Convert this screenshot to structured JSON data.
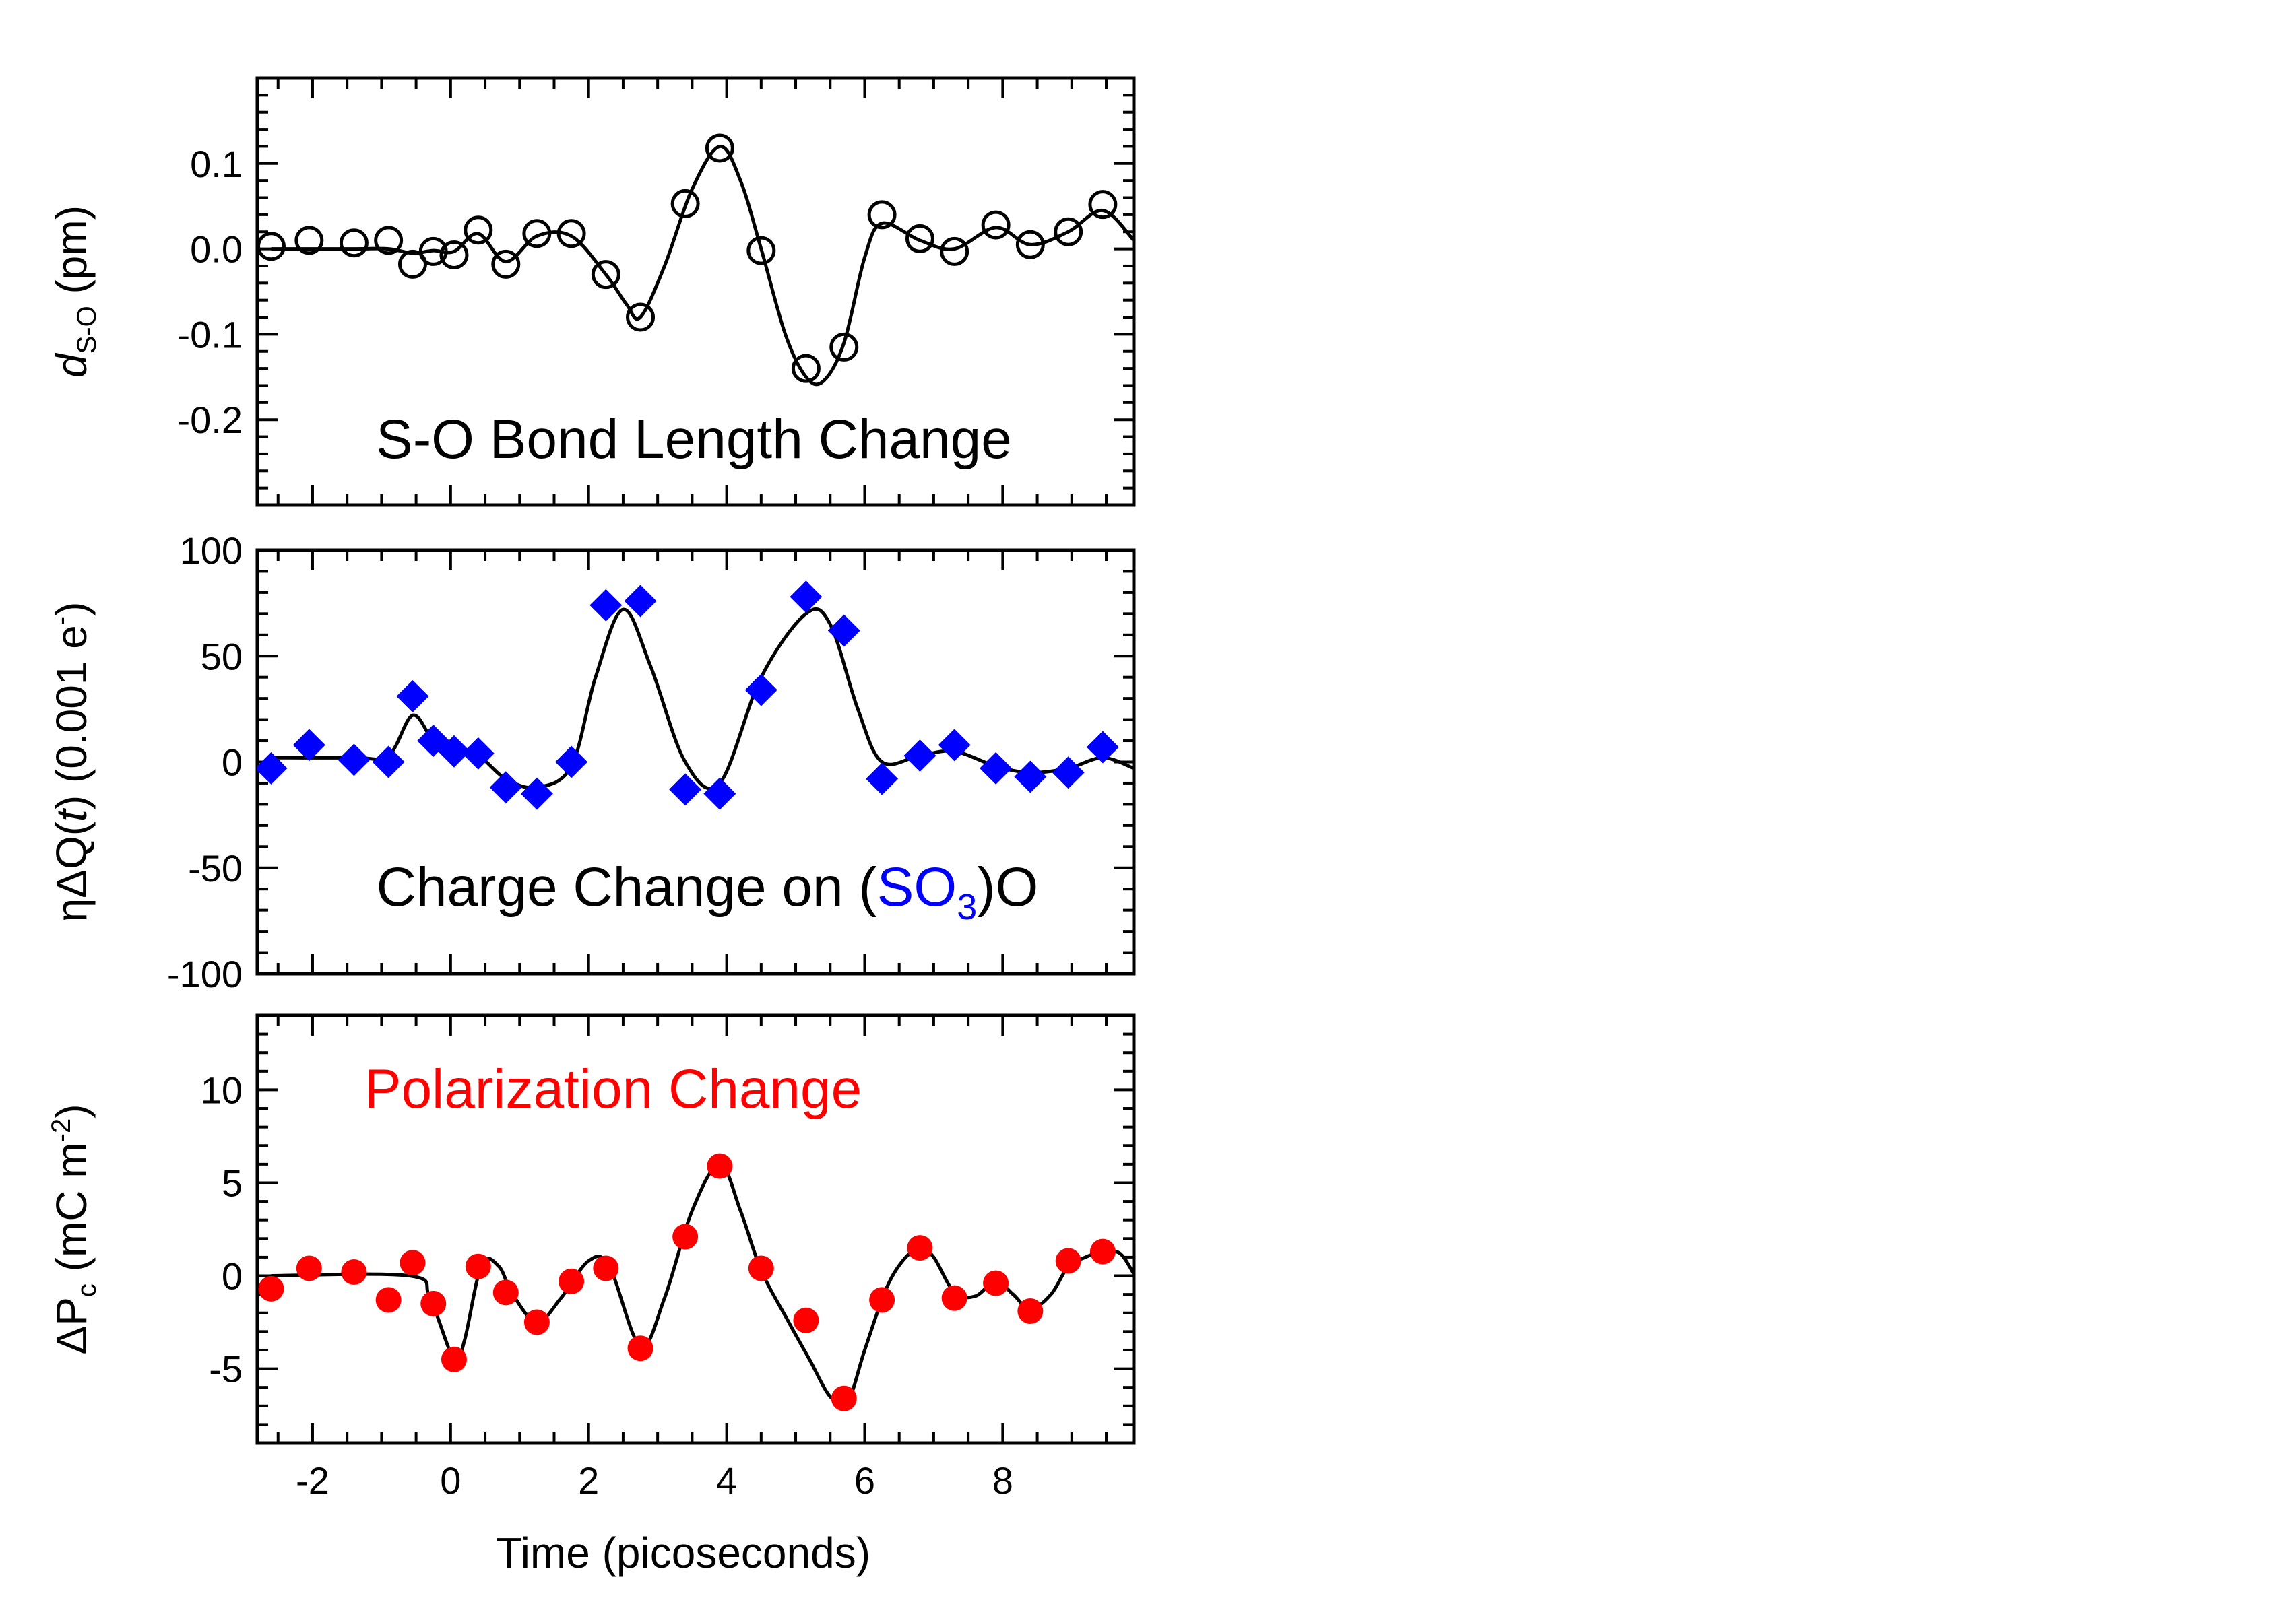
{
  "chart_data": [
    {
      "type": "scatter",
      "panel": "top",
      "ylabel": {
        "symbol": "d",
        "subscript": "S-O",
        "unit": " (pm)"
      },
      "annotation": {
        "text": "S-O Bond Length Change",
        "color": "#000000"
      },
      "xlim": [
        -2.8,
        9.9
      ],
      "ylim": [
        -0.3,
        0.2
      ],
      "xticks": [
        -2,
        0,
        2,
        4,
        6,
        8
      ],
      "yticks": [
        -0.2,
        -0.1,
        0.0,
        0.1
      ],
      "ytick_labels": [
        "-0.2",
        "-0.1",
        "0.0",
        "0.1"
      ],
      "marker": "open-circle",
      "marker_color": "#000000",
      "fit_color": "#000000",
      "points": {
        "x": [
          -2.6,
          -2.05,
          -1.4,
          -0.9,
          -0.55,
          -0.25,
          0.05,
          0.4,
          0.8,
          1.25,
          1.75,
          2.25,
          2.75,
          3.4,
          3.9,
          4.5,
          5.15,
          5.7,
          6.25,
          6.8,
          7.3,
          7.9,
          8.4,
          8.95,
          9.45
        ],
        "y": [
          0.003,
          0.01,
          0.007,
          0.01,
          -0.018,
          -0.003,
          -0.007,
          0.022,
          -0.018,
          0.018,
          0.018,
          -0.03,
          -0.08,
          0.053,
          0.118,
          -0.002,
          -0.14,
          -0.115,
          0.04,
          0.012,
          -0.003,
          0.028,
          0.005,
          0.02,
          0.052
        ]
      },
      "fit": {
        "x": [
          -2.6,
          -2.0,
          -1.4,
          -0.9,
          -0.55,
          -0.25,
          0.05,
          0.4,
          0.8,
          1.25,
          1.75,
          2.25,
          2.55,
          2.75,
          3.1,
          3.5,
          3.9,
          4.2,
          4.5,
          4.85,
          5.15,
          5.4,
          5.7,
          6.0,
          6.25,
          6.8,
          7.3,
          7.9,
          8.4,
          8.95,
          9.45,
          9.9
        ],
        "y": [
          0.0,
          0.0,
          0.0,
          0.0,
          -0.005,
          -0.002,
          -0.003,
          0.018,
          -0.015,
          0.015,
          0.015,
          -0.03,
          -0.065,
          -0.08,
          -0.02,
          0.07,
          0.12,
          0.08,
          0.0,
          -0.1,
          -0.15,
          -0.155,
          -0.11,
          -0.01,
          0.03,
          0.01,
          0.0,
          0.025,
          0.005,
          0.02,
          0.045,
          0.01
        ]
      }
    },
    {
      "type": "scatter",
      "panel": "middle",
      "ylabel": {
        "prefix": "ηΔQ(",
        "italic": "t",
        "suffix": ") (0.001 e",
        "sup": "-",
        "end": ")"
      },
      "annotation": {
        "parts": [
          {
            "text": "Charge Change on (",
            "color": "#000000"
          },
          {
            "text": "SO",
            "color": "#0000ff"
          },
          {
            "text": "3",
            "color": "#0000ff",
            "sub": true
          },
          {
            "text": ")O",
            "color": "#000000"
          }
        ]
      },
      "xlim": [
        -2.8,
        9.9
      ],
      "ylim": [
        -100,
        100
      ],
      "xticks": [
        -2,
        0,
        2,
        4,
        6,
        8
      ],
      "yticks": [
        -100,
        -50,
        0,
        50,
        100
      ],
      "ytick_labels": [
        "-100",
        "-50",
        "0",
        "50",
        "100"
      ],
      "marker": "filled-diamond",
      "marker_color": "#0000ff",
      "fit_color": "#000000",
      "points": {
        "x": [
          -2.6,
          -2.05,
          -1.4,
          -0.9,
          -0.55,
          -0.25,
          0.05,
          0.4,
          0.8,
          1.25,
          1.75,
          2.25,
          2.75,
          3.4,
          3.9,
          4.5,
          5.15,
          5.7,
          6.25,
          6.8,
          7.3,
          7.9,
          8.4,
          8.95,
          9.45
        ],
        "y": [
          -3,
          8,
          1,
          0,
          31,
          10,
          5,
          4,
          -12,
          -15,
          0,
          74,
          76,
          -13,
          -15,
          34,
          78,
          62,
          -8,
          3,
          8,
          -3,
          -7,
          -5,
          7
        ]
      },
      "fit": {
        "x": [
          -2.6,
          -1.4,
          -0.9,
          -0.55,
          -0.25,
          0.05,
          0.4,
          0.8,
          1.25,
          1.75,
          2.1,
          2.5,
          2.9,
          3.4,
          3.9,
          4.5,
          5.15,
          5.5,
          5.9,
          6.25,
          6.8,
          7.3,
          7.9,
          8.4,
          8.95,
          9.45,
          9.9
        ],
        "y": [
          2,
          2,
          3,
          22,
          10,
          5,
          3,
          -8,
          -12,
          -2,
          40,
          72,
          45,
          0,
          -10,
          40,
          70,
          65,
          25,
          0,
          3,
          5,
          -2,
          -5,
          -3,
          2,
          -3
        ]
      }
    },
    {
      "type": "scatter",
      "panel": "bottom",
      "ylabel": {
        "prefix": "ΔP",
        "subscript": "c",
        "unit": " (mC m",
        "sup": "-2",
        "end": ")"
      },
      "xlabel": "Time (picoseconds)",
      "annotation": {
        "text": "Polarization Change",
        "color": "#ff0000"
      },
      "xlim": [
        -2.8,
        9.9
      ],
      "ylim": [
        -9,
        14
      ],
      "xticks": [
        -2,
        0,
        2,
        4,
        6,
        8
      ],
      "xtick_labels": [
        "-2",
        "0",
        "2",
        "4",
        "6",
        "8"
      ],
      "yticks": [
        -5,
        0,
        5,
        10
      ],
      "ytick_labels": [
        "-5",
        "0",
        "5",
        "10"
      ],
      "marker": "filled-circle",
      "marker_color": "#ff0000",
      "fit_color": "#000000",
      "points": {
        "x": [
          -2.6,
          -2.05,
          -1.4,
          -0.9,
          -0.55,
          -0.25,
          0.05,
          0.4,
          0.8,
          1.25,
          1.75,
          2.25,
          2.75,
          3.4,
          3.9,
          4.5,
          5.15,
          5.7,
          6.25,
          6.8,
          7.3,
          7.9,
          8.4,
          8.95,
          9.45
        ],
        "y": [
          -0.7,
          0.4,
          0.2,
          -1.3,
          0.7,
          -1.5,
          -4.5,
          0.5,
          -0.9,
          -2.5,
          -0.3,
          0.4,
          -3.9,
          2.1,
          5.9,
          0.4,
          -2.4,
          -6.6,
          -1.3,
          1.5,
          -1.2,
          -0.4,
          -1.9,
          0.8,
          1.3
        ]
      },
      "fit": {
        "x": [
          -2.6,
          -0.6,
          -0.3,
          0.05,
          0.2,
          0.45,
          0.7,
          0.9,
          1.25,
          1.6,
          2.0,
          2.3,
          2.75,
          3.1,
          3.5,
          3.9,
          4.2,
          4.5,
          4.9,
          5.2,
          5.5,
          5.75,
          6.0,
          6.3,
          6.55,
          6.8,
          7.0,
          7.3,
          7.6,
          7.9,
          8.15,
          8.4,
          8.7,
          8.95,
          9.2,
          9.45,
          9.7,
          9.9
        ],
        "y": [
          0,
          0,
          -1.2,
          -4.5,
          -3.5,
          0.6,
          0.5,
          -1.0,
          -2.5,
          -1.2,
          0.8,
          0.5,
          -3.8,
          -1.2,
          3.5,
          6.0,
          3.5,
          0.3,
          -2.5,
          -4.5,
          -6.5,
          -6.8,
          -4.0,
          -0.8,
          0.8,
          1.5,
          1.0,
          -0.9,
          -1.1,
          -0.3,
          -1.0,
          -1.8,
          -1.0,
          0.5,
          1.0,
          1.3,
          1.2,
          0.1
        ]
      }
    }
  ]
}
